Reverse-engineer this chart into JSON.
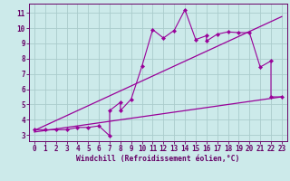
{
  "xlabel": "Windchill (Refroidissement éolien,°C)",
  "bg_color": "#cceaea",
  "grid_color": "#aacccc",
  "line_color": "#990099",
  "spine_color": "#660066",
  "tick_color": "#660066",
  "xlim": [
    -0.5,
    23.5
  ],
  "ylim": [
    2.6,
    11.6
  ],
  "xticks": [
    0,
    1,
    2,
    3,
    4,
    5,
    6,
    7,
    8,
    9,
    10,
    11,
    12,
    13,
    14,
    15,
    16,
    17,
    18,
    19,
    20,
    21,
    22,
    23
  ],
  "yticks": [
    3,
    4,
    5,
    6,
    7,
    8,
    9,
    10,
    11
  ],
  "line1_x": [
    0,
    1,
    2,
    3,
    4,
    5,
    6,
    7,
    7,
    8,
    8,
    9,
    10,
    11,
    12,
    13,
    14,
    15,
    16,
    16,
    17,
    18,
    19,
    20,
    21,
    22,
    22,
    23
  ],
  "line1_y": [
    3.35,
    3.35,
    3.35,
    3.35,
    3.5,
    3.5,
    3.6,
    2.95,
    4.6,
    5.15,
    4.6,
    5.35,
    7.5,
    9.9,
    9.35,
    9.85,
    11.2,
    9.25,
    9.5,
    9.15,
    9.6,
    9.75,
    9.7,
    9.7,
    7.45,
    7.85,
    5.5,
    5.5
  ],
  "line2_x": [
    0,
    23
  ],
  "line2_y": [
    3.2,
    5.5
  ],
  "line3_x": [
    0,
    23
  ],
  "line3_y": [
    3.3,
    10.75
  ],
  "tick_fontsize": 5.5,
  "xlabel_fontsize": 5.8
}
